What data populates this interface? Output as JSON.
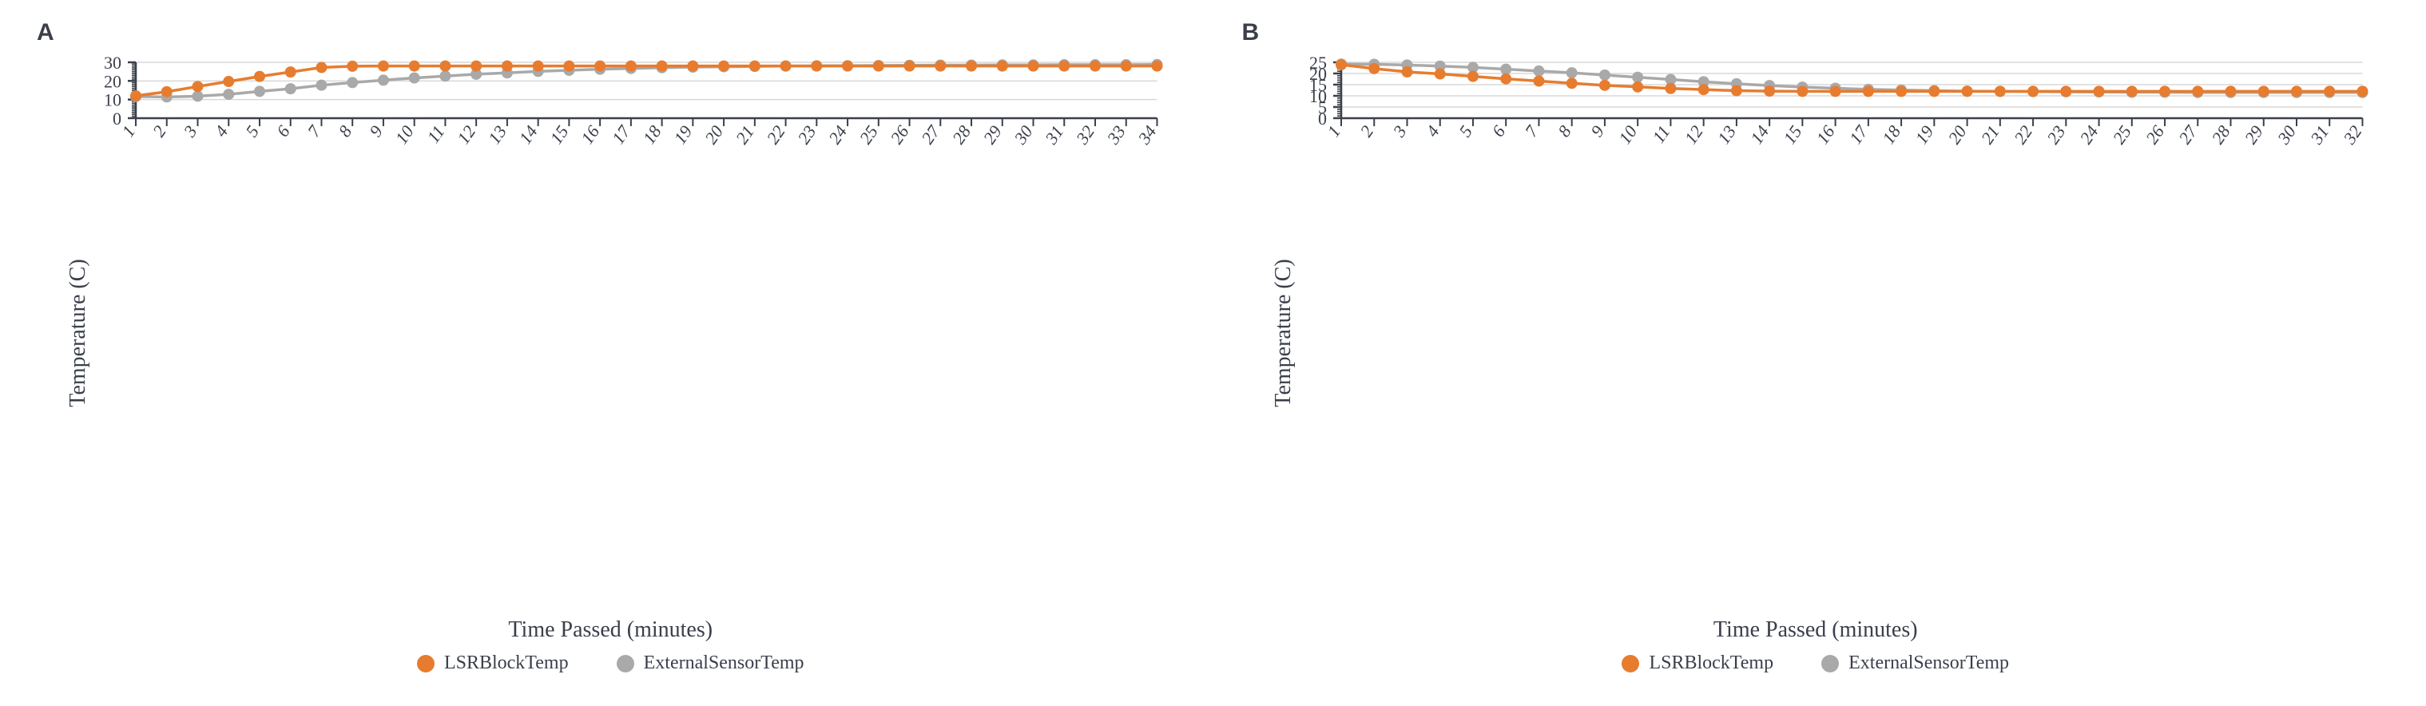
{
  "layout": {
    "panels": [
      "A",
      "B"
    ],
    "font_family": "Georgia, serif",
    "title_fontsize": 28,
    "tick_fontsize": 22,
    "legend_fontsize": 24,
    "panel_label_fontsize": 30,
    "background_color": "#ffffff",
    "text_color": "#3a3f4a"
  },
  "common": {
    "xlabel": "Time Passed (minutes)",
    "ylabel": "Temperature (C)",
    "series1_name": "LSRBlockTemp",
    "series2_name": "ExternalSensorTemp",
    "series1_color": "#e77c2f",
    "series2_color": "#a9a9a9",
    "grid_color": "#d8d8d8",
    "axis_color": "#3a3f4a",
    "marker_radius": 7,
    "line_width": 3.5,
    "tick_len_major": 10,
    "tick_len_minor": 5
  },
  "chartA": {
    "type": "line",
    "panel_label": "A",
    "x": [
      1,
      2,
      3,
      4,
      5,
      6,
      7,
      8,
      9,
      10,
      11,
      12,
      13,
      14,
      15,
      16,
      17,
      18,
      19,
      20,
      21,
      22,
      23,
      24,
      25,
      26,
      27,
      28,
      29,
      30,
      31,
      32,
      33,
      34
    ],
    "lsr": [
      12.0,
      14.2,
      17.0,
      19.7,
      22.4,
      24.8,
      27.2,
      27.9,
      28.0,
      28.0,
      28.0,
      28.0,
      28.0,
      28.0,
      28.0,
      28.0,
      28.0,
      28.0,
      28.0,
      28.0,
      28.0,
      28.0,
      28.0,
      28.0,
      28.0,
      28.0,
      28.0,
      28.0,
      28.0,
      28.0,
      28.0,
      28.0,
      28.0,
      28.0
    ],
    "ext": [
      11.6,
      11.4,
      11.8,
      12.8,
      14.4,
      15.8,
      17.7,
      19.1,
      20.4,
      21.6,
      22.6,
      23.6,
      24.3,
      25.1,
      25.7,
      26.3,
      26.7,
      27.1,
      27.4,
      27.6,
      27.8,
      28.0,
      28.1,
      28.2,
      28.3,
      28.4,
      28.5,
      28.5,
      28.6,
      28.6,
      28.7,
      28.7,
      28.7,
      28.8
    ],
    "ylim": [
      0,
      30
    ],
    "y_major_ticks": [
      0,
      10,
      20,
      30
    ],
    "y_minor_step": 1,
    "xtick_step": 1,
    "x_italic": true
  },
  "chartB": {
    "type": "line",
    "panel_label": "B",
    "x": [
      1,
      2,
      3,
      4,
      5,
      6,
      7,
      8,
      9,
      10,
      11,
      12,
      13,
      14,
      15,
      16,
      17,
      18,
      19,
      20,
      21,
      22,
      23,
      24,
      25,
      26,
      27,
      28,
      29,
      30,
      31,
      32
    ],
    "lsr": [
      23.9,
      22.2,
      20.7,
      19.8,
      18.7,
      17.6,
      16.6,
      15.6,
      14.7,
      14.0,
      13.3,
      12.8,
      12.3,
      12.1,
      12.0,
      12.0,
      12.0,
      12.0,
      12.0,
      12.0,
      12.0,
      12.0,
      12.0,
      12.0,
      12.0,
      12.0,
      12.0,
      12.0,
      12.0,
      12.0,
      12.0,
      12.0
    ],
    "ext": [
      24.2,
      24.1,
      23.8,
      23.3,
      22.7,
      21.9,
      21.1,
      20.3,
      19.3,
      18.3,
      17.3,
      16.3,
      15.4,
      14.6,
      13.9,
      13.4,
      12.9,
      12.6,
      12.3,
      12.1,
      12.0,
      11.9,
      11.8,
      11.7,
      11.6,
      11.6,
      11.5,
      11.5,
      11.5,
      11.5,
      11.5,
      11.5
    ],
    "ylim": [
      0,
      25
    ],
    "y_major_ticks": [
      0,
      5,
      10,
      15,
      20,
      25
    ],
    "y_minor_step": 1,
    "xtick_step": 1,
    "x_italic": true
  }
}
